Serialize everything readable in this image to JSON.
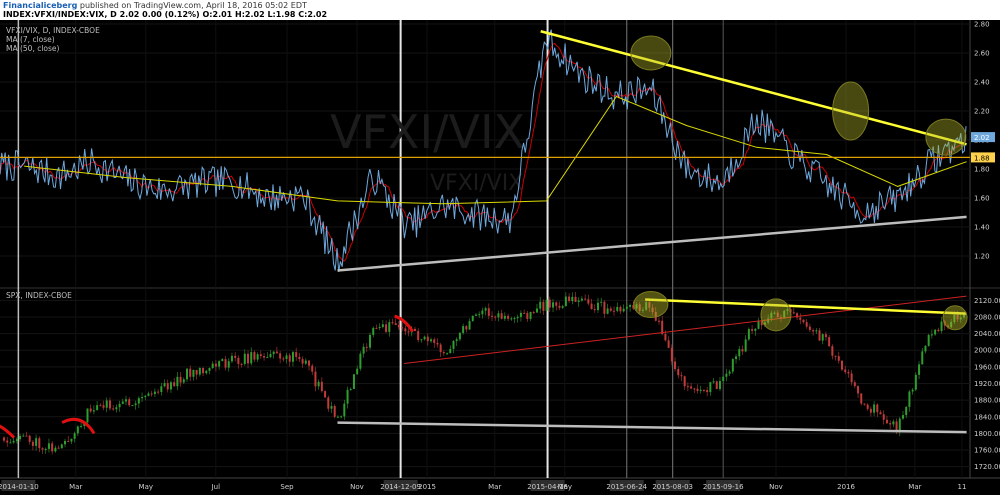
{
  "header": {
    "author": "Financialiceberg",
    "published": "published on TradingView.com, April 18, 2016 05:02 EDT",
    "ohlc": "INDEX:VFXI/INDEX:VIX, D  2.02  0.00 (0.12%)  O:2.01  H:2.02  L:1.98  C:2.02"
  },
  "colors": {
    "background": "#000000",
    "price_line": "#6fa8dc",
    "ma7": "#cc0000",
    "ma50": "#d9d900",
    "trendline_yellow": "#ffff33",
    "support_line": "#bdbdbd",
    "horizontal_level": "#e0a000",
    "candle_up": "#2e9e2e",
    "candle_down": "#c23b3b",
    "highlight_ellipse": "#b5b52a"
  },
  "chart_data": [
    {
      "type": "line",
      "panel": "upper",
      "legend": [
        "VFXI/VIX, D, INDEX-CBOE",
        "MA (7, close)",
        "MA (50, close)"
      ],
      "watermark": "VFXI/VIX",
      "watermark_sub": "VFXI/VIX",
      "ylim": [
        1.0,
        2.8
      ],
      "y_ticks": [
        "2.80",
        "2.60",
        "2.40",
        "2.20",
        "2.00",
        "1.80",
        "1.60",
        "1.40",
        "1.20"
      ],
      "last_value_label": "2.02",
      "level_label": "1.88",
      "horizontal_level": 1.88,
      "series": [
        {
          "name": "VFXI/VIX, D, INDEX-CBOE",
          "x": [
            "2014-01",
            "2014-02",
            "2014-03",
            "2014-04",
            "2014-05",
            "2014-06",
            "2014-07",
            "2014-08",
            "2014-09",
            "2014-10",
            "2014-11",
            "2014-12",
            "2015-01",
            "2015-02",
            "2015-03",
            "2015-04",
            "2015-05",
            "2015-06",
            "2015-07",
            "2015-08",
            "2015-09",
            "2015-10",
            "2015-11",
            "2015-12",
            "2016-01",
            "2016-02",
            "2016-03",
            "2016-04"
          ],
          "values": [
            1.82,
            1.75,
            1.85,
            1.72,
            1.65,
            1.7,
            1.72,
            1.6,
            1.62,
            1.15,
            1.75,
            1.4,
            1.55,
            1.48,
            1.45,
            2.7,
            2.45,
            2.3,
            2.35,
            1.8,
            1.7,
            2.15,
            1.9,
            1.7,
            1.5,
            1.6,
            1.85,
            2.02
          ]
        },
        {
          "name": "MA (50, close)",
          "x": [
            "2014-01",
            "2014-04",
            "2014-07",
            "2014-10",
            "2015-01",
            "2015-04",
            "2015-06",
            "2015-08",
            "2015-10",
            "2015-12",
            "2016-02",
            "2016-04"
          ],
          "values": [
            1.82,
            1.74,
            1.68,
            1.58,
            1.56,
            1.58,
            2.3,
            2.1,
            1.95,
            1.9,
            1.68,
            1.85
          ]
        }
      ],
      "annotations": {
        "resistance_trendline": [
          [
            "2015-04-10",
            2.75
          ],
          [
            "2016-04-15",
            1.97
          ]
        ],
        "support_trendline": [
          [
            "2014-10-15",
            1.1
          ],
          [
            "2016-04-15",
            1.47
          ]
        ]
      }
    },
    {
      "type": "candlestick",
      "panel": "lower",
      "legend": [
        "SPX, INDEX-CBOE"
      ],
      "ylim": [
        1700,
        2140
      ],
      "y_ticks": [
        "2120.00",
        "2080.00",
        "2040.00",
        "2000.00",
        "1960.00",
        "1920.00",
        "1880.00",
        "1840.00",
        "1800.00",
        "1760.00",
        "1720.00"
      ],
      "x_ticks": [
        "2014-01-10",
        "Mar",
        "May",
        "Jul",
        "Sep",
        "Nov",
        "2014-12-09",
        "2015",
        "Mar",
        "2015-04-16",
        "May",
        "2015-06-24",
        "2015-08-03",
        "2015-09-16",
        "Nov",
        "2016",
        "Mar",
        "11"
      ],
      "series": [
        {
          "name": "SPX",
          "x": [
            "2014-01",
            "2014-02",
            "2014-03",
            "2014-04",
            "2014-05",
            "2014-06",
            "2014-07",
            "2014-08",
            "2014-09",
            "2014-10",
            "2014-11",
            "2014-12",
            "2015-01",
            "2015-02",
            "2015-03",
            "2015-04",
            "2015-05",
            "2015-06",
            "2015-07",
            "2015-08",
            "2015-09",
            "2015-10",
            "2015-11",
            "2015-12",
            "2016-01",
            "2016-02",
            "2016-03",
            "2016-04"
          ],
          "values": [
            1790,
            1760,
            1860,
            1875,
            1910,
            1955,
            1975,
            1990,
            1980,
            1830,
            2060,
            2050,
            1995,
            2100,
            2070,
            2110,
            2120,
            2090,
            2110,
            1900,
            1920,
            2070,
            2090,
            2020,
            1880,
            1810,
            2050,
            2090
          ]
        }
      ],
      "annotations": {
        "resistance_trendline": [
          [
            "2015-07-10",
            2122
          ],
          [
            "2016-04-15",
            2088
          ]
        ],
        "red_trendline": [
          [
            "2014-12-12",
            1968
          ],
          [
            "2016-04-15",
            2130
          ]
        ],
        "support_trendline": [
          [
            "2014-10-15",
            1826
          ],
          [
            "2016-04-15",
            1803
          ]
        ]
      }
    }
  ]
}
